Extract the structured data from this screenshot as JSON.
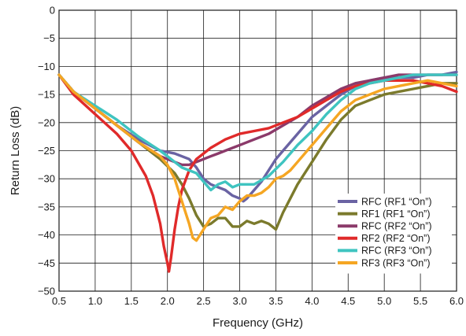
{
  "chart_data": {
    "type": "line",
    "xlabel": "Frequency (GHz)",
    "ylabel": "Return Loss (dB)",
    "xlim": [
      0.5,
      6.0
    ],
    "ylim": [
      -50,
      0
    ],
    "x_ticks": [
      "0.5",
      "1.0",
      "1.5",
      "2.0",
      "2.5",
      "3.0",
      "3.5",
      "4.0",
      "4.5",
      "5.0",
      "5.5",
      "6.0"
    ],
    "x_tick_values": [
      0.5,
      1.0,
      1.5,
      2.0,
      2.5,
      3.0,
      3.5,
      4.0,
      4.5,
      5.0,
      5.5,
      6.0
    ],
    "y_ticks": [
      "0",
      "−5",
      "−10",
      "−15",
      "−20",
      "−25",
      "−30",
      "−35",
      "−40",
      "−45",
      "−50"
    ],
    "y_tick_values": [
      0,
      -5,
      -10,
      -15,
      -20,
      -25,
      -30,
      -35,
      -40,
      -45,
      -50
    ],
    "grid": true,
    "legend_position": "bottom-right",
    "series": [
      {
        "name": "RFC (RF1 “On”)",
        "color": "#6a63a3",
        "x": [
          0.5,
          0.7,
          1.0,
          1.3,
          1.6,
          1.9,
          2.1,
          2.3,
          2.4,
          2.5,
          2.6,
          2.7,
          2.8,
          2.9,
          3.0,
          3.05,
          3.1,
          3.2,
          3.3,
          3.4,
          3.5,
          3.6,
          3.8,
          4.0,
          4.2,
          4.4,
          4.6,
          4.8,
          5.0,
          5.2,
          5.4,
          5.6,
          5.8,
          6.0
        ],
        "values": [
          -11.5,
          -14.5,
          -17.5,
          -20.5,
          -23.0,
          -25.0,
          -25.5,
          -26.5,
          -28.0,
          -30.0,
          -31.0,
          -31.5,
          -32.0,
          -33.0,
          -33.5,
          -34.0,
          -33.5,
          -32.0,
          -30.5,
          -28.5,
          -26.5,
          -25.0,
          -22.0,
          -19.0,
          -17.0,
          -15.0,
          -13.5,
          -12.5,
          -12.0,
          -12.0,
          -12.0,
          -11.5,
          -11.5,
          -11.0
        ]
      },
      {
        "name": "RF1 (RF1 “On”)",
        "color": "#7b7a2c",
        "x": [
          0.5,
          0.7,
          1.0,
          1.3,
          1.6,
          1.9,
          2.1,
          2.2,
          2.3,
          2.4,
          2.5,
          2.6,
          2.7,
          2.8,
          2.9,
          3.0,
          3.1,
          3.2,
          3.3,
          3.4,
          3.5,
          3.6,
          3.7,
          3.8,
          4.0,
          4.2,
          4.4,
          4.6,
          4.8,
          5.0,
          5.2,
          5.4,
          5.6,
          5.8,
          6.0
        ],
        "values": [
          -11.5,
          -14.5,
          -17.5,
          -20.5,
          -23.5,
          -26.5,
          -29.0,
          -31.0,
          -33.5,
          -36.5,
          -38.5,
          -38.0,
          -37.0,
          -37.0,
          -38.5,
          -38.5,
          -37.5,
          -38.0,
          -37.5,
          -38.0,
          -39.0,
          -36.0,
          -33.5,
          -31.0,
          -27.0,
          -23.0,
          -19.5,
          -17.0,
          -16.0,
          -15.0,
          -14.5,
          -14.0,
          -13.5,
          -13.0,
          -13.0
        ]
      },
      {
        "name": "RFC (RF2 “On”)",
        "color": "#8b3a6a",
        "x": [
          0.5,
          0.7,
          1.0,
          1.3,
          1.6,
          1.9,
          2.0,
          2.1,
          2.2,
          2.3,
          2.4,
          2.5,
          2.6,
          2.7,
          2.8,
          3.0,
          3.2,
          3.4,
          3.6,
          3.8,
          4.0,
          4.2,
          4.4,
          4.6,
          4.8,
          5.0,
          5.2,
          5.4,
          5.6,
          5.8,
          6.0
        ],
        "values": [
          -11.5,
          -14.5,
          -17.5,
          -20.5,
          -23.5,
          -26.0,
          -26.5,
          -27.0,
          -27.5,
          -27.5,
          -27.0,
          -26.5,
          -26.0,
          -25.5,
          -25.0,
          -24.0,
          -23.0,
          -22.0,
          -20.5,
          -19.0,
          -17.0,
          -15.5,
          -14.0,
          -13.0,
          -12.5,
          -12.0,
          -11.5,
          -11.5,
          -11.5,
          -11.5,
          -11.5
        ]
      },
      {
        "name": "RF2 (RF2 “On”)",
        "color": "#e02a2a",
        "x": [
          0.5,
          0.7,
          1.0,
          1.3,
          1.5,
          1.7,
          1.8,
          1.9,
          1.95,
          2.0,
          2.02,
          2.05,
          2.1,
          2.15,
          2.2,
          2.3,
          2.4,
          2.6,
          2.8,
          3.0,
          3.2,
          3.4,
          3.6,
          3.8,
          4.0,
          4.2,
          4.4,
          4.6,
          4.8,
          5.0,
          5.2,
          5.4,
          5.6,
          5.8,
          6.0
        ],
        "values": [
          -11.5,
          -15.0,
          -18.5,
          -22.0,
          -25.0,
          -29.5,
          -33.0,
          -38.0,
          -42.0,
          -45.0,
          -46.5,
          -44.0,
          -39.0,
          -35.0,
          -32.0,
          -28.5,
          -26.5,
          -24.5,
          -23.0,
          -22.0,
          -21.5,
          -21.0,
          -20.0,
          -19.0,
          -17.5,
          -16.0,
          -14.5,
          -13.5,
          -13.0,
          -12.5,
          -12.5,
          -12.5,
          -13.0,
          -13.5,
          -14.5
        ]
      },
      {
        "name": "RFC (RF3 “On”)",
        "color": "#3fc4c0",
        "x": [
          0.5,
          0.7,
          1.0,
          1.3,
          1.6,
          1.9,
          2.0,
          2.1,
          2.2,
          2.3,
          2.4,
          2.5,
          2.6,
          2.7,
          2.8,
          2.9,
          3.0,
          3.2,
          3.4,
          3.6,
          3.8,
          4.0,
          4.2,
          4.4,
          4.6,
          4.8,
          5.0,
          5.2,
          5.4,
          5.6,
          5.8,
          6.0
        ],
        "values": [
          -11.5,
          -14.5,
          -17.0,
          -19.5,
          -22.5,
          -25.0,
          -26.0,
          -27.0,
          -28.0,
          -28.5,
          -29.0,
          -30.5,
          -32.0,
          -31.0,
          -30.5,
          -31.5,
          -31.0,
          -31.0,
          -29.5,
          -27.0,
          -24.0,
          -21.5,
          -18.5,
          -16.0,
          -14.0,
          -13.0,
          -12.5,
          -12.0,
          -11.5,
          -11.5,
          -11.5,
          -11.5
        ]
      },
      {
        "name": "RF3 (RF3 “On”)",
        "color": "#f5a623",
        "x": [
          0.5,
          0.7,
          1.0,
          1.3,
          1.6,
          1.9,
          2.0,
          2.1,
          2.2,
          2.3,
          2.35,
          2.4,
          2.5,
          2.6,
          2.7,
          2.8,
          2.9,
          3.0,
          3.1,
          3.2,
          3.3,
          3.4,
          3.5,
          3.6,
          3.7,
          3.8,
          4.0,
          4.2,
          4.4,
          4.6,
          4.8,
          5.0,
          5.2,
          5.4,
          5.6,
          5.8,
          6.0
        ],
        "values": [
          -11.5,
          -14.5,
          -17.5,
          -20.5,
          -23.5,
          -26.0,
          -27.5,
          -30.0,
          -34.0,
          -38.0,
          -40.5,
          -41.0,
          -39.0,
          -37.0,
          -36.5,
          -35.0,
          -35.5,
          -34.0,
          -33.0,
          -33.0,
          -32.5,
          -31.5,
          -30.0,
          -29.5,
          -28.5,
          -27.0,
          -24.0,
          -21.0,
          -18.0,
          -16.0,
          -15.0,
          -14.0,
          -13.5,
          -13.0,
          -12.5,
          -13.0,
          -13.5
        ]
      }
    ]
  }
}
